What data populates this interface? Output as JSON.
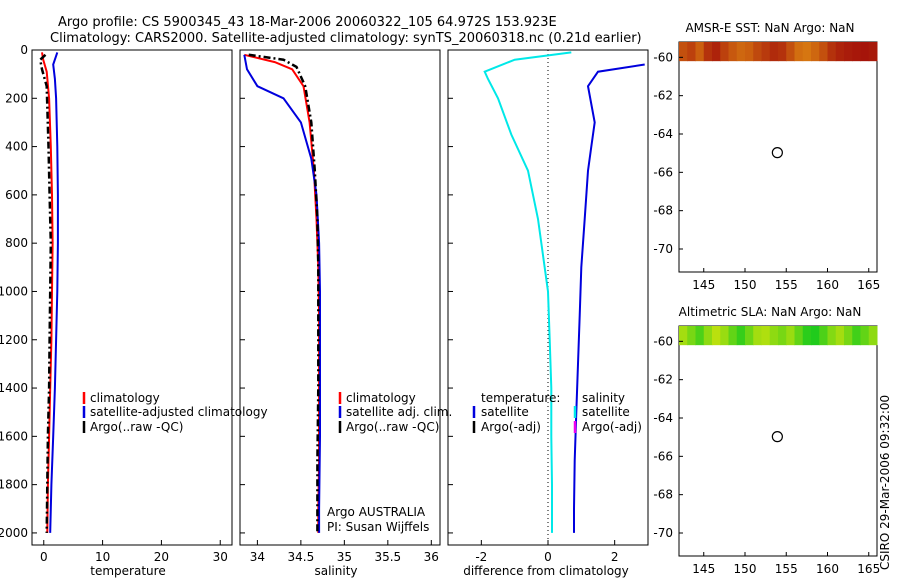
{
  "title": {
    "line1": "Argo profile: CS 5900345_43 18-Mar-2006 20060322_105 64.972S 153.923E",
    "line2": "Climatology: CARS2000. Satellite-adjusted climatology: synTS_20060318.nc (0.21d earlier)"
  },
  "side_label": "CSIRO 29-Mar-2006 09:32:00",
  "colors": {
    "climatology": "#ff0000",
    "satellite": "#0000dd",
    "argo": "#000000",
    "cyan": "#00e8e8",
    "magenta": "#ee00ee"
  },
  "chart_data": [
    {
      "id": "temperature",
      "type": "line",
      "xlabel": "temperature",
      "xlim": [
        -2,
        32
      ],
      "ylim": [
        0,
        2050
      ],
      "y_reversed": true,
      "xticks": [
        0,
        10,
        20,
        30
      ],
      "yticks": [
        0,
        200,
        400,
        600,
        800,
        1000,
        1200,
        1400,
        1600,
        1800,
        2000
      ],
      "series": [
        {
          "name": "climatology",
          "style": "solid",
          "color": "#ff0000",
          "x": [
            -0.3,
            -0.1,
            0.5,
            0.9,
            1.2,
            1.4,
            1.5,
            1.4,
            1.3,
            1.1,
            0.9,
            0.7,
            0.6
          ],
          "y": [
            10,
            40,
            90,
            200,
            400,
            600,
            800,
            1000,
            1200,
            1400,
            1600,
            1800,
            2000
          ]
        },
        {
          "name": "satellite-adjusted climatology",
          "style": "solid",
          "color": "#0000dd",
          "x": [
            2.3,
            1.6,
            1.9,
            2.1,
            2.3,
            2.4,
            2.4,
            2.3,
            2.1,
            1.9,
            1.6,
            1.3,
            1.1
          ],
          "y": [
            10,
            60,
            120,
            200,
            400,
            600,
            800,
            1000,
            1200,
            1400,
            1600,
            1800,
            2000
          ]
        },
        {
          "name": "Argo(..raw -QC)",
          "style": "dashdot",
          "color": "#000000",
          "x": [
            0.3,
            -0.6,
            -0.3,
            0.5,
            0.8,
            1.0,
            1.2,
            1.1,
            1.0,
            0.9,
            0.7,
            0.6,
            0.5
          ],
          "y": [
            20,
            40,
            80,
            150,
            400,
            600,
            800,
            1000,
            1200,
            1400,
            1600,
            1800,
            2000
          ]
        }
      ],
      "legend": [
        "climatology",
        "satellite-adjusted climatology",
        "Argo(..raw -QC)"
      ]
    },
    {
      "id": "salinity",
      "type": "line",
      "xlabel": "salinity",
      "xlim": [
        33.8,
        36.1
      ],
      "ylim": [
        0,
        2050
      ],
      "y_reversed": true,
      "xticks": [
        34,
        34.5,
        35,
        35.5,
        36
      ],
      "xticklabels": [
        "34",
        "34.5",
        "35",
        "35.5",
        "36"
      ],
      "series": [
        {
          "name": "climatology",
          "style": "solid",
          "color": "#ff0000",
          "x": [
            33.85,
            34.2,
            34.4,
            34.53,
            34.6,
            34.65,
            34.68,
            34.7,
            34.71,
            34.71,
            34.71,
            34.7,
            34.7
          ],
          "y": [
            20,
            50,
            80,
            150,
            300,
            500,
            700,
            900,
            1100,
            1400,
            1700,
            1900,
            2000
          ]
        },
        {
          "name": "satellite adj. clim.",
          "style": "solid",
          "color": "#0000dd",
          "x": [
            33.85,
            33.88,
            34.0,
            34.3,
            34.5,
            34.62,
            34.68,
            34.71,
            34.72,
            34.72,
            34.72,
            34.71,
            34.71
          ],
          "y": [
            20,
            80,
            150,
            200,
            300,
            450,
            600,
            800,
            1000,
            1300,
            1600,
            1900,
            2000
          ]
        },
        {
          "name": "Argo(..raw -QC)",
          "style": "dashdot",
          "color": "#000000",
          "x": [
            33.9,
            34.3,
            34.45,
            34.55,
            34.62,
            34.66,
            34.69,
            34.7,
            34.7,
            34.7,
            34.69,
            34.69,
            34.69
          ],
          "y": [
            20,
            40,
            70,
            150,
            300,
            500,
            700,
            900,
            1100,
            1400,
            1700,
            1900,
            2000
          ]
        }
      ],
      "legend": [
        "climatology",
        "satellite adj. clim.",
        "Argo(..raw -QC)"
      ],
      "annotations": [
        "Argo AUSTRALIA",
        "PI: Susan Wijffels"
      ]
    },
    {
      "id": "difference",
      "type": "line",
      "xlabel": "difference from climatology",
      "xlim": [
        -3,
        3
      ],
      "ylim": [
        0,
        2050
      ],
      "y_reversed": true,
      "xticks": [
        -2,
        0,
        2
      ],
      "series": [
        {
          "name": "temperature satellite",
          "style": "solid",
          "color": "#00e8e8",
          "x": [
            0.7,
            -1.0,
            -1.9,
            -1.8,
            -1.5,
            -1.1,
            -0.6,
            -0.3,
            -0.15,
            0.0,
            0.05,
            0.1,
            0.1,
            0.12,
            0.12
          ],
          "y": [
            10,
            40,
            90,
            120,
            200,
            350,
            500,
            700,
            850,
            1000,
            1200,
            1400,
            1600,
            1800,
            2000
          ]
        },
        {
          "name": "salinity satellite",
          "style": "solid",
          "color": "#0000dd",
          "x": [
            2.9,
            1.5,
            1.2,
            1.4,
            1.3,
            1.2,
            1.1,
            1.0,
            0.95,
            0.9,
            0.85,
            0.8,
            0.78,
            0.78
          ],
          "y": [
            60,
            90,
            150,
            300,
            400,
            500,
            700,
            900,
            1100,
            1300,
            1500,
            1700,
            1900,
            2000
          ]
        }
      ],
      "zero_line": true,
      "legend_temperature": [
        "temperature:",
        "satellite",
        "Argo(-adj)"
      ],
      "legend_salinity": [
        "salinity",
        "satellite",
        "Argo(-adj)"
      ]
    },
    {
      "id": "sst_map",
      "type": "heatmap",
      "title": "AMSR-E SST: NaN Argo: NaN",
      "xlim": [
        142,
        166
      ],
      "ylim": [
        -71.2,
        -59.2
      ],
      "xticks": [
        145,
        150,
        155,
        160,
        165
      ],
      "yticks": [
        -60,
        -62,
        -64,
        -66,
        -68,
        -70
      ],
      "band_lat": [
        -59.2,
        -60.2
      ],
      "band_values": [
        0.6,
        0.7,
        0.5,
        0.8,
        0.9,
        0.7,
        0.55,
        0.45,
        0.5,
        0.65,
        0.75,
        0.85,
        0.8,
        0.6,
        0.4,
        0.35,
        0.45,
        0.6,
        0.8,
        0.9,
        0.95,
        0.98,
        1.0,
        0.97
      ],
      "marker": {
        "lon": 153.923,
        "lat": -64.972
      }
    },
    {
      "id": "sla_map",
      "type": "heatmap",
      "title": "Altimetric SLA: NaN Argo: NaN",
      "xlim": [
        142,
        166
      ],
      "ylim": [
        -71.2,
        -59.2
      ],
      "xticks": [
        145,
        150,
        155,
        160,
        165
      ],
      "yticks": [
        -60,
        -62,
        -64,
        -66,
        -68,
        -70
      ],
      "band_lat": [
        -59.2,
        -60.2
      ],
      "band_values": [
        0.3,
        0.5,
        0.7,
        0.4,
        0.2,
        0.35,
        0.6,
        0.8,
        0.55,
        0.3,
        0.25,
        0.4,
        0.5,
        0.35,
        0.6,
        0.85,
        0.9,
        0.7,
        0.45,
        0.3,
        0.5,
        0.75,
        0.6,
        0.4
      ],
      "marker": {
        "lon": 153.923,
        "lat": -64.972
      }
    }
  ]
}
